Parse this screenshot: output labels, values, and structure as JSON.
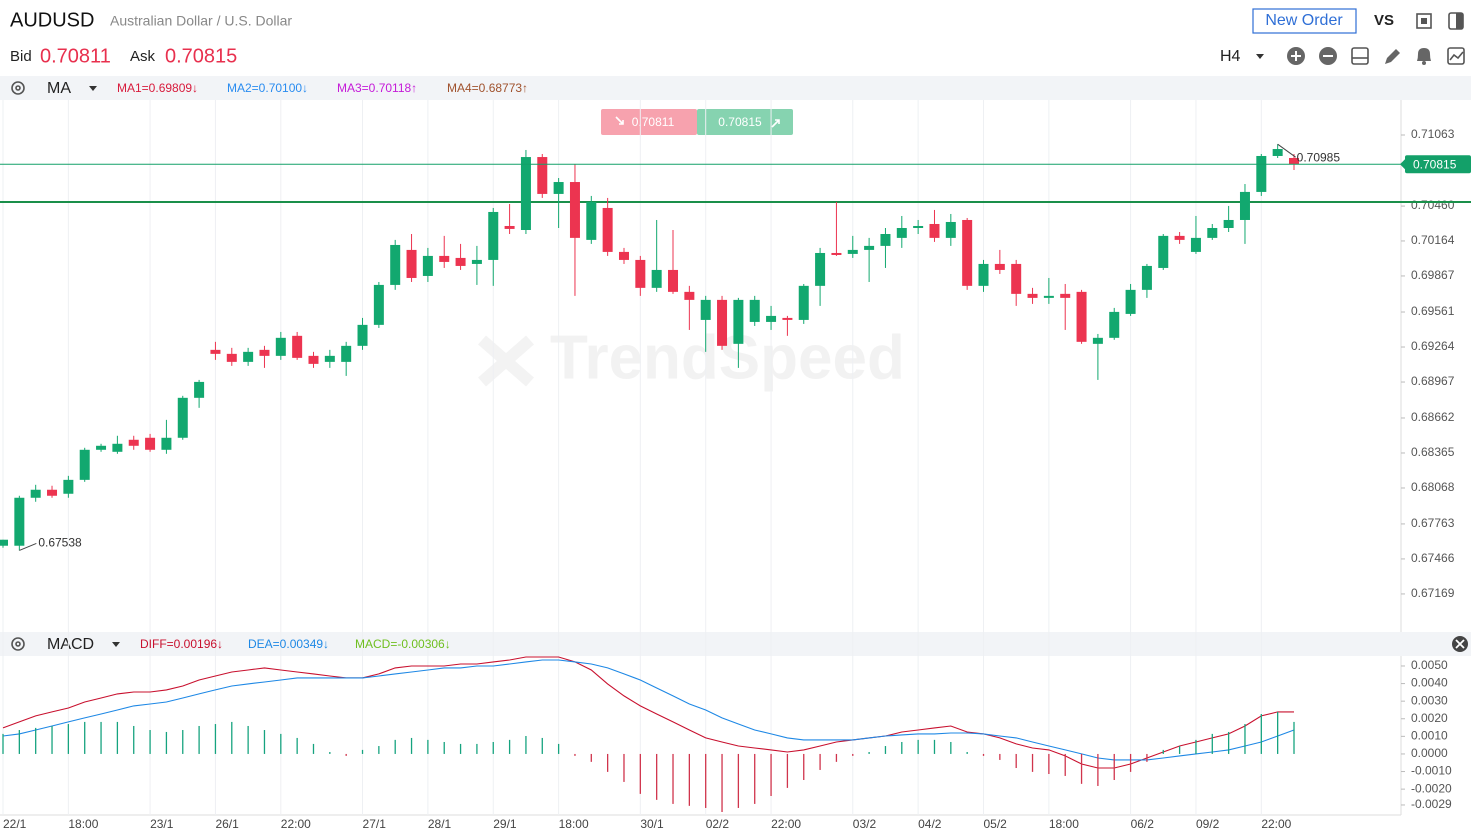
{
  "header": {
    "symbol": "AUDUSD",
    "name": "Australian Dollar / U.S. Dollar",
    "new_order": "New Order",
    "vs": "VS",
    "bid_label": "Bid",
    "bid": "0.70811",
    "ask_label": "Ask",
    "ask": "0.70815",
    "timeframe": "H4"
  },
  "quote": {
    "sell": "0.70811",
    "buy": "0.70815"
  },
  "watermark": "TrendSpeed",
  "chart_data": [
    {
      "type": "candlestick",
      "indicator": "MA",
      "indicator_values": [
        "MA1=0.69809↓",
        "MA2=0.70100↓",
        "MA3=0.70118↑",
        "MA4=0.68773↑"
      ],
      "indicator_colors": [
        "#d81b3c",
        "#2a8cf0",
        "#c51bd8",
        "#a0522d"
      ],
      "up_color": "#12a86f",
      "down_color": "#ec3450",
      "categories": [
        "22/1",
        null,
        null,
        null,
        "18:00",
        null,
        null,
        null,
        null,
        "23/1",
        null,
        null,
        null,
        "26/1",
        null,
        null,
        null,
        "22:00",
        null,
        null,
        null,
        null,
        "27/1",
        null,
        null,
        null,
        "28/1",
        null,
        null,
        null,
        "29/1",
        null,
        null,
        null,
        "18:00",
        null,
        null,
        null,
        null,
        "30/1",
        null,
        null,
        null,
        "02/2",
        null,
        null,
        null,
        "22:00",
        null,
        null,
        null,
        null,
        "03/2",
        null,
        null,
        null,
        "04/2",
        null,
        null,
        null,
        "05/2",
        null,
        null,
        null,
        "18:00",
        null,
        null,
        null,
        null,
        "06/2",
        null,
        null,
        null,
        "09/2",
        null,
        null,
        null,
        "22:00",
        null,
        null
      ],
      "open": [
        0.67578,
        0.67578,
        0.67985,
        0.68053,
        0.68019,
        0.68137,
        0.68392,
        0.68375,
        0.68477,
        0.68494,
        0.68392,
        0.68494,
        0.68833,
        0.6924,
        0.69206,
        0.69138,
        0.6924,
        0.69189,
        0.69359,
        0.69189,
        0.69138,
        0.69138,
        0.69274,
        0.69452,
        0.69791,
        0.70088,
        0.69867,
        0.70037,
        0.7002,
        0.69969,
        0.70003,
        0.70291,
        0.70257,
        0.70876,
        0.70563,
        0.70664,
        0.70173,
        0.70444,
        0.70071,
        0.70003,
        0.69766,
        0.69918,
        0.69732,
        0.69494,
        0.69664,
        0.69291,
        0.69477,
        0.69477,
        0.69511,
        0.69494,
        0.69783,
        0.70062,
        0.70054,
        0.70088,
        0.70122,
        0.7019,
        0.70274,
        0.70308,
        0.7019,
        0.70342,
        0.69783,
        0.69969,
        0.69969,
        0.69715,
        0.69681,
        0.69715,
        0.69732,
        0.69291,
        0.69342,
        0.69545,
        0.69749,
        0.69935,
        0.70207,
        0.70071,
        0.7019,
        0.70274,
        0.70342,
        0.7058,
        0.70885,
        0.70868
      ],
      "high": [
        0.67629,
        0.68002,
        0.68095,
        0.68087,
        0.68171,
        0.68409,
        0.68443,
        0.68511,
        0.68511,
        0.68527,
        0.68646,
        0.6885,
        0.68985,
        0.69308,
        0.69257,
        0.69257,
        0.69274,
        0.69392,
        0.69392,
        0.69223,
        0.6924,
        0.69308,
        0.69511,
        0.69816,
        0.70173,
        0.70223,
        0.70105,
        0.70207,
        0.70139,
        0.70122,
        0.70444,
        0.70478,
        0.70936,
        0.70902,
        0.70698,
        0.70817,
        0.70546,
        0.70529,
        0.70105,
        0.70037,
        0.70342,
        0.70257,
        0.69783,
        0.69698,
        0.69698,
        0.69681,
        0.69698,
        0.69613,
        0.69528,
        0.69799,
        0.70105,
        0.70495,
        0.70207,
        0.7019,
        0.70274,
        0.70376,
        0.70342,
        0.70427,
        0.70393,
        0.70359,
        0.70003,
        0.70088,
        0.70003,
        0.69766,
        0.6985,
        0.69799,
        0.69749,
        0.69375,
        0.69596,
        0.69799,
        0.69969,
        0.70223,
        0.7024,
        0.70376,
        0.70308,
        0.70461,
        0.70647,
        0.70902,
        0.70985,
        0.70902
      ],
      "low": [
        0.67561,
        0.67538,
        0.67951,
        0.67985,
        0.67985,
        0.6812,
        0.68375,
        0.68358,
        0.68392,
        0.68375,
        0.68358,
        0.68477,
        0.68748,
        0.69155,
        0.69104,
        0.69104,
        0.69087,
        0.69155,
        0.69155,
        0.69087,
        0.69087,
        0.69019,
        0.6924,
        0.69426,
        0.69749,
        0.69816,
        0.69816,
        0.69935,
        0.69918,
        0.69791,
        0.69783,
        0.70223,
        0.70223,
        0.70529,
        0.70274,
        0.69698,
        0.70139,
        0.70037,
        0.69969,
        0.69698,
        0.69732,
        0.69715,
        0.69409,
        0.69223,
        0.6924,
        0.69087,
        0.69443,
        0.69409,
        0.69359,
        0.6946,
        0.69613,
        0.70037,
        0.7002,
        0.69816,
        0.69935,
        0.70105,
        0.70223,
        0.70156,
        0.70122,
        0.69749,
        0.69732,
        0.69884,
        0.69613,
        0.6963,
        0.6963,
        0.69409,
        0.69291,
        0.68985,
        0.69325,
        0.69528,
        0.69681,
        0.69918,
        0.70139,
        0.70054,
        0.70173,
        0.7024,
        0.70139,
        0.70546,
        0.70868,
        0.70766
      ],
      "close": [
        0.67629,
        0.67985,
        0.68053,
        0.68002,
        0.68137,
        0.68392,
        0.68426,
        0.68443,
        0.68426,
        0.68392,
        0.68494,
        0.68833,
        0.68968,
        0.69206,
        0.69138,
        0.69223,
        0.69189,
        0.69342,
        0.69172,
        0.69121,
        0.69189,
        0.69274,
        0.69452,
        0.69791,
        0.7013,
        0.6985,
        0.70037,
        0.69986,
        0.69952,
        0.70003,
        0.7041,
        0.70266,
        0.70876,
        0.70563,
        0.70664,
        0.7019,
        0.70495,
        0.70071,
        0.70003,
        0.69766,
        0.69918,
        0.69732,
        0.69664,
        0.69664,
        0.69274,
        0.69664,
        0.69664,
        0.69528,
        0.69494,
        0.69783,
        0.70062,
        0.70045,
        0.70088,
        0.70122,
        0.70223,
        0.70274,
        0.70291,
        0.7019,
        0.70325,
        0.69783,
        0.69969,
        0.69918,
        0.69715,
        0.69681,
        0.69698,
        0.69681,
        0.69308,
        0.69342,
        0.69562,
        0.69749,
        0.69952,
        0.70207,
        0.70173,
        0.7019,
        0.70274,
        0.70342,
        0.7058,
        0.70885,
        0.70944,
        0.70815
      ],
      "ylim": [
        0.66863,
        0.7136
      ],
      "yticks": [
        0.71063,
        {
          "value": 0.7046,
          "label": "0.70460"
        },
        0.70164,
        0.69867,
        0.69561,
        0.69264,
        0.68967,
        0.68662,
        0.68365,
        0.68068,
        0.67763,
        0.67466,
        0.67169
      ],
      "current_price": 0.70815,
      "current_price_color": "#13a069",
      "horizontal_line": 0.70495,
      "horizontal_line_color": "#1a8f4a",
      "max_label": 0.70985,
      "min_label": 0.67538
    },
    {
      "type": "macd",
      "title": "MACD",
      "series": [
        {
          "name": "DIFF=0.00196↓",
          "color": "#c8102e",
          "values": [
            0.00148,
            0.00182,
            0.00216,
            0.00239,
            0.00261,
            0.00295,
            0.00318,
            0.00341,
            0.00352,
            0.00352,
            0.00364,
            0.00386,
            0.0042,
            0.00443,
            0.00466,
            0.00477,
            0.00489,
            0.00477,
            0.00466,
            0.00455,
            0.00443,
            0.00432,
            0.00432,
            0.00455,
            0.00489,
            0.005,
            0.005,
            0.005,
            0.00511,
            0.00511,
            0.00523,
            0.00534,
            0.00551,
            0.00551,
            0.00551,
            0.00523,
            0.00477,
            0.00398,
            0.0033,
            0.00273,
            0.00227,
            0.00182,
            0.00136,
            0.00091,
            0.00068,
            0.00045,
            0.00034,
            0.00023,
            0.00011,
            0.00023,
            0.00045,
            0.00068,
            0.0008,
            0.00091,
            0.00102,
            0.00125,
            0.00136,
            0.00148,
            0.00159,
            0.00125,
            0.00114,
            0.00091,
            0.00057,
            0.00034,
            0.00023,
            -0.00011,
            -0.00057,
            -0.0008,
            -0.0008,
            -0.00057,
            -0.00023,
            0.00011,
            0.00045,
            0.00068,
            0.00091,
            0.00114,
            0.00159,
            0.00216,
            0.00239,
            0.00239
          ]
        },
        {
          "name": "DEA=0.00349↓",
          "color": "#1e88e5",
          "values": [
            0.00102,
            0.00114,
            0.00136,
            0.00159,
            0.00182,
            0.00205,
            0.00227,
            0.0025,
            0.00273,
            0.00284,
            0.00295,
            0.00318,
            0.00341,
            0.00364,
            0.00386,
            0.00398,
            0.00409,
            0.0042,
            0.00432,
            0.00432,
            0.00432,
            0.00432,
            0.00432,
            0.00443,
            0.00455,
            0.00466,
            0.00477,
            0.00489,
            0.00489,
            0.005,
            0.005,
            0.00511,
            0.00523,
            0.00534,
            0.00534,
            0.00523,
            0.00511,
            0.00489,
            0.00455,
            0.0042,
            0.00375,
            0.0033,
            0.00284,
            0.0025,
            0.00205,
            0.0017,
            0.00136,
            0.00114,
            0.00091,
            0.0008,
            0.0008,
            0.0008,
            0.0008,
            0.00091,
            0.00102,
            0.00108,
            0.00114,
            0.00114,
            0.00119,
            0.00119,
            0.00114,
            0.00102,
            0.00091,
            0.00068,
            0.00045,
            0.00023,
            0,
            -0.00023,
            -0.00034,
            -0.00034,
            -0.00034,
            -0.00023,
            -0.00011,
            0,
            0.00011,
            0.00023,
            0.00045,
            0.00068,
            0.00102,
            0.00136
          ]
        },
        {
          "name": "MACD=-0.00306↓",
          "color": "#6fbf1f",
          "bars": true,
          "up_color": "#16a37f",
          "down_color": "#d0344c",
          "values": [
            0.00114,
            0.00136,
            0.00148,
            0.00159,
            0.0017,
            0.00182,
            0.00182,
            0.00182,
            0.00159,
            0.00136,
            0.00125,
            0.00136,
            0.00159,
            0.0017,
            0.00182,
            0.00159,
            0.00136,
            0.00114,
            0.00091,
            0.00057,
            0.00011,
            -0.00011,
            0.00023,
            0.00045,
            0.0008,
            0.00091,
            0.0008,
            0.00068,
            0.00057,
            0.00057,
            0.00068,
            0.0008,
            0.00102,
            0.00091,
            0.00057,
            -0.00011,
            -0.00045,
            -0.00102,
            -0.00159,
            -0.00227,
            -0.00261,
            -0.00284,
            -0.00295,
            -0.00307,
            -0.0033,
            -0.00307,
            -0.00284,
            -0.00239,
            -0.00193,
            -0.00148,
            -0.00091,
            -0.00045,
            -0.00011,
            0.00011,
            0.00045,
            0.00068,
            0.0008,
            0.0008,
            0.00068,
            0.00011,
            -0.00011,
            -0.00034,
            -0.0008,
            -0.00102,
            -0.00114,
            -0.00125,
            -0.0017,
            -0.00182,
            -0.00148,
            -0.00102,
            -0.00045,
            0.00023,
            0.00045,
            0.0008,
            0.00114,
            0.00125,
            0.0017,
            0.00227,
            0.00239,
            0.00182
          ]
        }
      ],
      "ylim": [
        -0.00347,
        0.00551
      ],
      "yticks": [
        {
          "value": 0.005,
          "label": "0.0050"
        },
        {
          "value": 0.004,
          "label": "0.0040"
        },
        {
          "value": 0.003,
          "label": "0.0030"
        },
        {
          "value": 0.002,
          "label": "0.0020"
        },
        {
          "value": 0.001,
          "label": "0.0010"
        },
        {
          "value": 0,
          "label": "0.0000"
        },
        {
          "value": -0.001,
          "label": "-0.0010"
        },
        {
          "value": -0.002,
          "label": "-0.0020"
        },
        {
          "value": -0.0029,
          "label": "-0.0029"
        }
      ]
    }
  ]
}
